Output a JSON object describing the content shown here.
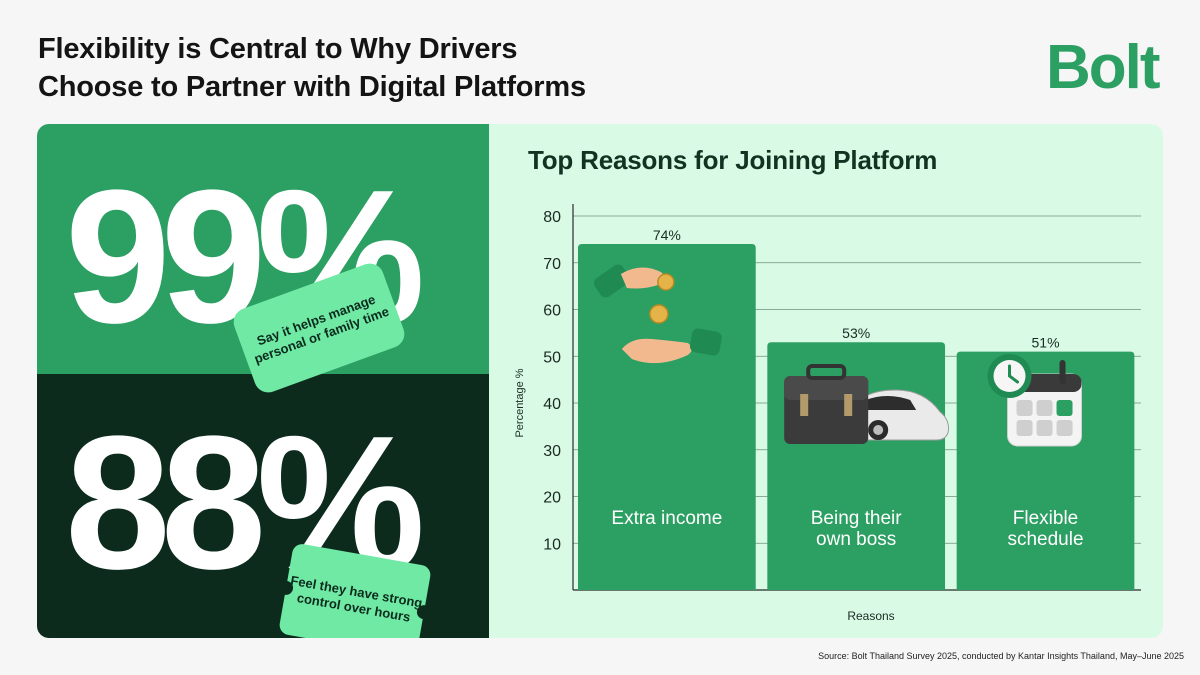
{
  "headline": {
    "line1": "Flexibility is Central to Why Drivers",
    "line2": "Choose to Partner with Digital Platforms"
  },
  "logo": {
    "text": "Bolt"
  },
  "stats": [
    {
      "value": "99%",
      "caption": "Say it helps manage personal or family time"
    },
    {
      "value": "88%",
      "caption": "Feel they have strong control over hours"
    }
  ],
  "colors": {
    "brand_green": "#2c9f63",
    "dark_green": "#0c2b1d",
    "light_green": "#6fe9a4",
    "panel_bg": "#d9fbe5"
  },
  "chart_data": {
    "type": "bar",
    "title": "Top Reasons for Joining Platform",
    "xlabel": "Reasons",
    "ylabel": "Percentage %",
    "ylim": [
      0,
      80
    ],
    "yticks": [
      10,
      20,
      30,
      40,
      50,
      60,
      70,
      80
    ],
    "grid": true,
    "categories": [
      [
        "Extra income"
      ],
      [
        "Being their",
        "own boss"
      ],
      [
        "Flexible",
        "schedule"
      ]
    ],
    "values": [
      74,
      53,
      51
    ],
    "data_labels": [
      "74%",
      "53%",
      "51%"
    ],
    "icons": [
      "money-hands-icon",
      "briefcase-car-icon",
      "clock-calendar-icon"
    ],
    "bar_color": "#2c9f63"
  },
  "source": "Source: Bolt Thailand Survey 2025, conducted by Kantar Insights Thailand, May–June 2025"
}
